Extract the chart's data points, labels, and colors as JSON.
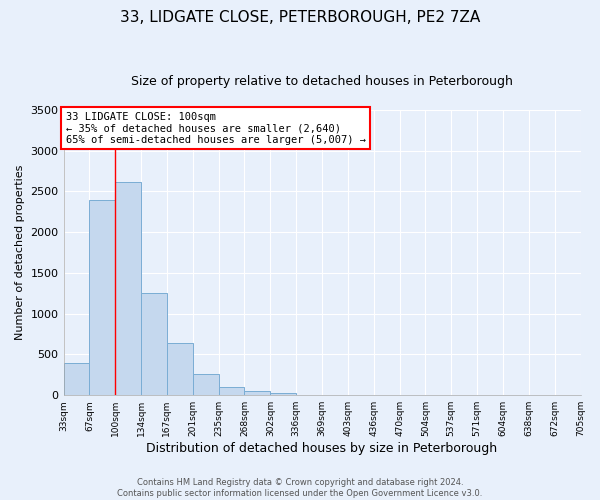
{
  "title": "33, LIDGATE CLOSE, PETERBOROUGH, PE2 7ZA",
  "subtitle": "Size of property relative to detached houses in Peterborough",
  "xlabel": "Distribution of detached houses by size in Peterborough",
  "ylabel": "Number of detached properties",
  "footer_line1": "Contains HM Land Registry data © Crown copyright and database right 2024.",
  "footer_line2": "Contains public sector information licensed under the Open Government Licence v3.0.",
  "bin_labels": [
    "33sqm",
    "67sqm",
    "100sqm",
    "134sqm",
    "167sqm",
    "201sqm",
    "235sqm",
    "268sqm",
    "302sqm",
    "336sqm",
    "369sqm",
    "403sqm",
    "436sqm",
    "470sqm",
    "504sqm",
    "537sqm",
    "571sqm",
    "604sqm",
    "638sqm",
    "672sqm",
    "705sqm"
  ],
  "bar_values": [
    400,
    2400,
    2620,
    1250,
    640,
    260,
    100,
    55,
    30,
    0,
    0,
    0,
    0,
    0,
    0,
    0,
    0,
    0,
    0,
    0
  ],
  "bar_color": "#c5d8ee",
  "bar_edge_color": "#7aadd4",
  "ylim": [
    0,
    3500
  ],
  "yticks": [
    0,
    500,
    1000,
    1500,
    2000,
    2500,
    3000,
    3500
  ],
  "red_line_bin_index": 2,
  "annotation_line1": "33 LIDGATE CLOSE: 100sqm",
  "annotation_line2": "← 35% of detached houses are smaller (2,640)",
  "annotation_line3": "65% of semi-detached houses are larger (5,007) →",
  "annotation_box_color": "white",
  "annotation_box_edge_color": "red",
  "background_color": "#e8f0fb",
  "plot_bg_color": "#e8f0fb",
  "grid_color": "white",
  "title_fontsize": 11,
  "subtitle_fontsize": 9,
  "ylabel_fontsize": 8,
  "xlabel_fontsize": 9
}
